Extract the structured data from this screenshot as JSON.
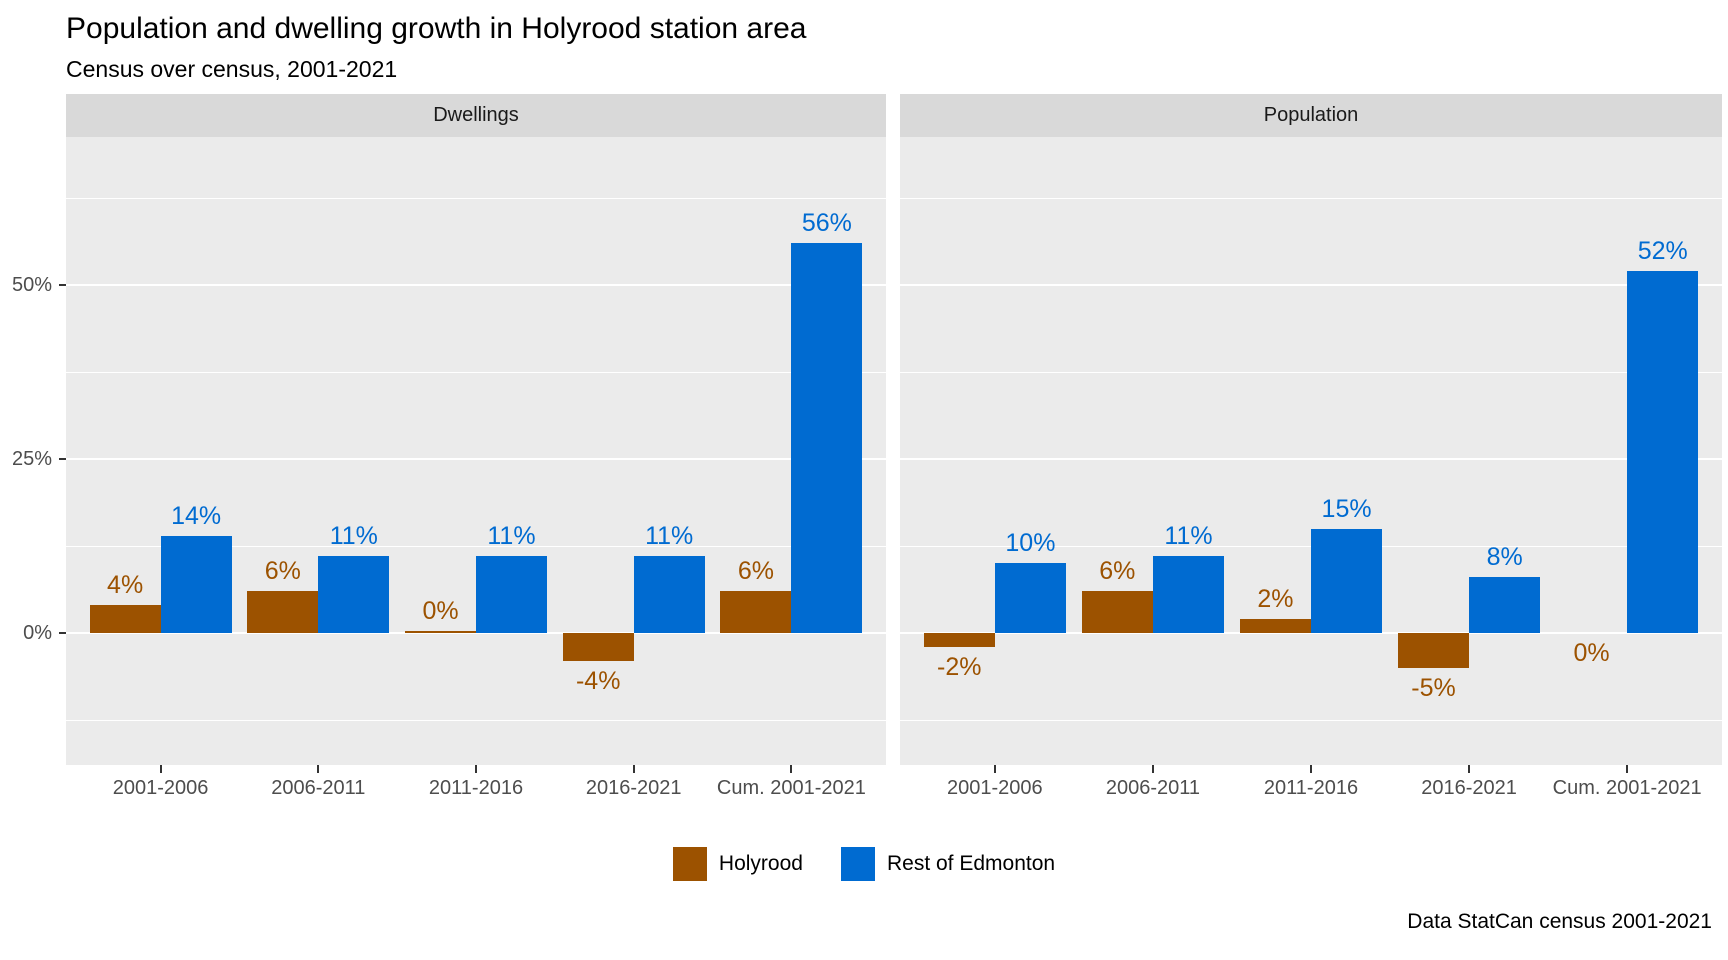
{
  "title": "Population and dwelling growth in Holyrood station area",
  "subtitle": "Census over census, 2001-2021",
  "caption": "Data StatCan census 2001-2021",
  "legend": {
    "items": [
      {
        "label": "Holyrood",
        "color": "#9c5200"
      },
      {
        "label": "Rest of Edmonton",
        "color": "#006bd1"
      }
    ]
  },
  "chart_data": {
    "type": "bar",
    "categories": [
      "2001-2006",
      "2006-2011",
      "2011-2016",
      "2016-2021",
      "Cum. 2001-2021"
    ],
    "series_names": [
      "Holyrood",
      "Rest of Edmonton"
    ],
    "series_colors": [
      "#9c5200",
      "#006bd1"
    ],
    "facets": [
      {
        "label": "Dwellings",
        "series": [
          {
            "name": "Holyrood",
            "values": [
              4,
              6,
              0,
              -4,
              6
            ],
            "labels": [
              "4%",
              "6%",
              "0%",
              "-4%",
              "6%"
            ],
            "label_pos": [
              "above",
              "above",
              "above",
              "below",
              "above"
            ]
          },
          {
            "name": "Rest of Edmonton",
            "values": [
              14,
              11,
              11,
              11,
              56
            ],
            "labels": [
              "14%",
              "11%",
              "11%",
              "11%",
              "56%"
            ],
            "label_pos": [
              "above",
              "above",
              "above",
              "above",
              "above"
            ]
          }
        ]
      },
      {
        "label": "Population",
        "series": [
          {
            "name": "Holyrood",
            "values": [
              -2,
              6,
              2,
              -5,
              0
            ],
            "labels": [
              "-2%",
              "6%",
              "2%",
              "-5%",
              "0%"
            ],
            "label_pos": [
              "below",
              "above",
              "above",
              "below",
              "below"
            ]
          },
          {
            "name": "Rest of Edmonton",
            "values": [
              10,
              11,
              15,
              8,
              52
            ],
            "labels": [
              "10%",
              "11%",
              "15%",
              "8%",
              "52%"
            ],
            "label_pos": [
              "above",
              "above",
              "above",
              "above",
              "above"
            ]
          }
        ]
      }
    ],
    "y_axis": {
      "tick_labels": [
        "0%",
        "25%",
        "50%"
      ],
      "tick_values": [
        0,
        25,
        50
      ],
      "minor_values": [
        -12.5,
        12.5,
        37.5,
        62.5
      ],
      "ylim": [
        -19,
        71
      ]
    },
    "style": {
      "panel_bg": "#ebebeb",
      "strip_bg": "#d9d9d9",
      "grid_color": "#ffffff",
      "axis_text_color": "#4d4d4d",
      "legend_position": "bottom",
      "grid": true
    }
  }
}
